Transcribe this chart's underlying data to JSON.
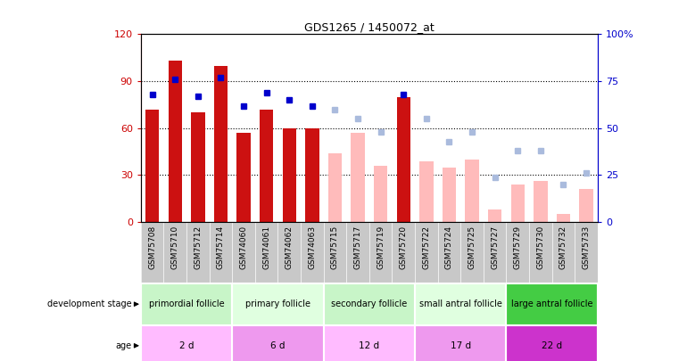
{
  "title": "GDS1265 / 1450072_at",
  "samples": [
    "GSM75708",
    "GSM75710",
    "GSM75712",
    "GSM75714",
    "GSM74060",
    "GSM74061",
    "GSM74062",
    "GSM74063",
    "GSM75715",
    "GSM75717",
    "GSM75719",
    "GSM75720",
    "GSM75722",
    "GSM75724",
    "GSM75725",
    "GSM75727",
    "GSM75729",
    "GSM75730",
    "GSM75732",
    "GSM75733"
  ],
  "count_values": [
    72,
    103,
    70,
    100,
    57,
    72,
    60,
    60,
    null,
    null,
    null,
    80,
    null,
    null,
    null,
    null,
    null,
    null,
    null,
    null
  ],
  "rank_values": [
    68,
    76,
    67,
    77,
    62,
    69,
    65,
    62,
    null,
    null,
    null,
    68,
    null,
    null,
    null,
    null,
    null,
    null,
    null,
    null
  ],
  "absent_count": [
    null,
    null,
    null,
    null,
    null,
    null,
    null,
    null,
    44,
    57,
    36,
    null,
    39,
    35,
    40,
    8,
    24,
    26,
    5,
    21
  ],
  "absent_rank": [
    null,
    null,
    null,
    null,
    null,
    null,
    null,
    null,
    60,
    55,
    48,
    null,
    55,
    43,
    48,
    24,
    38,
    38,
    20,
    26
  ],
  "groups": [
    {
      "label": "primordial follicle",
      "start": 0,
      "end": 4,
      "color": "#c8f5c8"
    },
    {
      "label": "primary follicle",
      "start": 4,
      "end": 8,
      "color": "#e0ffe0"
    },
    {
      "label": "secondary follicle",
      "start": 8,
      "end": 12,
      "color": "#c8f5c8"
    },
    {
      "label": "small antral follicle",
      "start": 12,
      "end": 16,
      "color": "#e0ffe0"
    },
    {
      "label": "large antral follicle",
      "start": 16,
      "end": 20,
      "color": "#44cc44"
    }
  ],
  "ages": [
    {
      "label": "2 d",
      "start": 0,
      "end": 4,
      "color": "#ffbbff"
    },
    {
      "label": "6 d",
      "start": 4,
      "end": 8,
      "color": "#ee99ee"
    },
    {
      "label": "12 d",
      "start": 8,
      "end": 12,
      "color": "#ffbbff"
    },
    {
      "label": "17 d",
      "start": 12,
      "end": 16,
      "color": "#ee99ee"
    },
    {
      "label": "22 d",
      "start": 16,
      "end": 20,
      "color": "#cc33cc"
    }
  ],
  "ylim_left": [
    0,
    120
  ],
  "ylim_right": [
    0,
    100
  ],
  "yticks_left": [
    0,
    30,
    60,
    90,
    120
  ],
  "yticks_right": [
    0,
    25,
    50,
    75,
    100
  ],
  "bar_color_present": "#cc1111",
  "bar_color_absent": "#ffbbbb",
  "dot_color_present": "#0000cc",
  "dot_color_absent": "#aabbdd",
  "left_tick_color": "#cc0000",
  "right_tick_color": "#0000cc",
  "xtick_bg_color": "#c8c8c8"
}
